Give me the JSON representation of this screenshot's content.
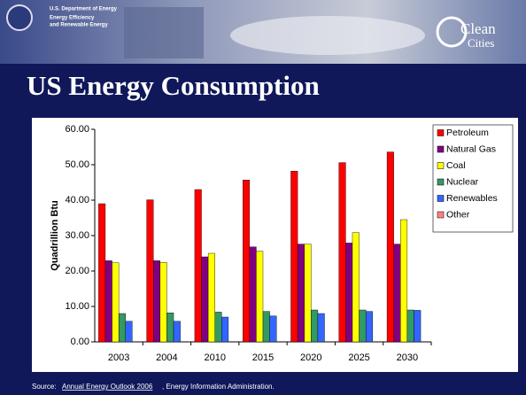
{
  "header": {
    "agency": "U.S. Department of Energy",
    "office_line1": "Energy Efficiency",
    "office_line2": "and Renewable Energy",
    "brand_line1": "Clean",
    "brand_line2": "Cities"
  },
  "chart_data": {
    "type": "bar",
    "title": "US Energy Consumption",
    "y_label": "Quadrillion Btu",
    "categories": [
      "2003",
      "2004",
      "2010",
      "2015",
      "2020",
      "2025",
      "2030"
    ],
    "series": [
      {
        "name": "Petroleum",
        "color": "#ff0000",
        "values": [
          39.0,
          40.1,
          43.0,
          45.7,
          48.2,
          50.6,
          53.6
        ]
      },
      {
        "name": "Natural Gas",
        "color": "#800080",
        "values": [
          22.9,
          22.9,
          24.0,
          26.8,
          27.6,
          27.9,
          27.6
        ]
      },
      {
        "name": "Coal",
        "color": "#ffff00",
        "values": [
          22.3,
          22.4,
          25.0,
          25.6,
          27.6,
          30.8,
          34.5
        ]
      },
      {
        "name": "Nuclear",
        "color": "#339966",
        "values": [
          8.0,
          8.2,
          8.4,
          8.6,
          9.0,
          9.0,
          9.0
        ]
      },
      {
        "name": "Renewables",
        "color": "#3366ff",
        "values": [
          5.8,
          5.8,
          7.0,
          7.3,
          8.0,
          8.6,
          8.9
        ]
      },
      {
        "name": "Other",
        "color": "#ff8080",
        "values": [
          0,
          0,
          0,
          0,
          0,
          0,
          0
        ]
      }
    ],
    "ylim": [
      0,
      60
    ],
    "yticks": [
      {
        "value": 0,
        "label": "0.00"
      },
      {
        "value": 10,
        "label": "10.00"
      },
      {
        "value": 20,
        "label": "20.00"
      },
      {
        "value": 30,
        "label": "30.00"
      },
      {
        "value": 40,
        "label": "40.00"
      },
      {
        "value": 50,
        "label": "50.00"
      },
      {
        "value": 60,
        "label": "60.00"
      }
    ],
    "grid": false,
    "legend": "right"
  },
  "source": {
    "prefix": "Source:",
    "link": "Annual Energy Outlook 2006",
    "suffix": ", Energy Information Administration."
  }
}
